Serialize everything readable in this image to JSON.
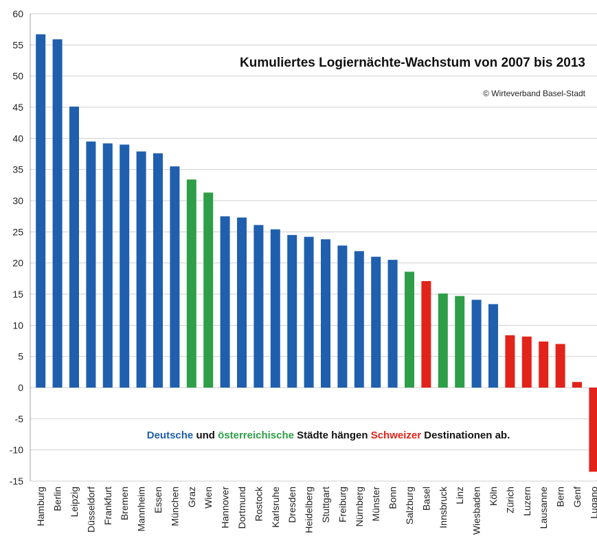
{
  "chart_data": {
    "type": "bar",
    "title": "Kumuliertes Logiernächte-Wachstum von 2007 bis 2013",
    "subtitle": "© Wirteverband Basel-Stadt",
    "xlabel": "",
    "ylabel": "",
    "ylim": [
      -15,
      60
    ],
    "yticks": [
      -15,
      -10,
      -5,
      0,
      5,
      10,
      15,
      20,
      25,
      30,
      35,
      40,
      45,
      50,
      55,
      60
    ],
    "grid": true,
    "categories": [
      "Hamburg",
      "Berlin",
      "Leipzig",
      "Düsseldorf",
      "Frankfurt",
      "Bremen",
      "Mannheim",
      "Essen",
      "München",
      "Graz",
      "Wien",
      "Hannover",
      "Dortmund",
      "Rostock",
      "Karlsruhe",
      "Dresden",
      "Heidelberg",
      "Stuttgart",
      "Freiburg",
      "Nürnberg",
      "Münster",
      "Bonn",
      "Salzburg",
      "Basel",
      "Innsbruck",
      "Linz",
      "Wiesbaden",
      "Köln",
      "Zürich",
      "Luzern",
      "Lausanne",
      "Bern",
      "Genf",
      "Lugano"
    ],
    "values": [
      56.7,
      55.9,
      45.1,
      39.5,
      39.2,
      39.0,
      37.9,
      37.6,
      35.5,
      33.4,
      31.3,
      27.5,
      27.3,
      26.1,
      25.4,
      24.5,
      24.2,
      23.8,
      22.8,
      21.9,
      21.0,
      20.5,
      18.6,
      17.1,
      15.1,
      14.7,
      14.1,
      13.4,
      8.4,
      8.2,
      7.4,
      7.0,
      0.9,
      -13.5
    ],
    "groups": [
      "de",
      "de",
      "de",
      "de",
      "de",
      "de",
      "de",
      "de",
      "de",
      "at",
      "at",
      "de",
      "de",
      "de",
      "de",
      "de",
      "de",
      "de",
      "de",
      "de",
      "de",
      "de",
      "at",
      "ch",
      "at",
      "at",
      "de",
      "de",
      "ch",
      "ch",
      "ch",
      "ch",
      "ch",
      "ch"
    ],
    "colors": {
      "de": "#1f5fae",
      "at": "#2e9e48",
      "ch": "#e2231a"
    },
    "annotation": [
      {
        "text": "Deutsche",
        "color": "#1f5fae"
      },
      {
        "text": " und ",
        "color": "#111111"
      },
      {
        "text": "österreichische",
        "color": "#2e9e48"
      },
      {
        "text": " Städte hängen ",
        "color": "#111111"
      },
      {
        "text": "Schweizer",
        "color": "#e2231a"
      },
      {
        "text": " Destinationen ab.",
        "color": "#111111"
      }
    ]
  },
  "colors": {
    "grid": "#cfcfcf",
    "text": "#222222"
  }
}
